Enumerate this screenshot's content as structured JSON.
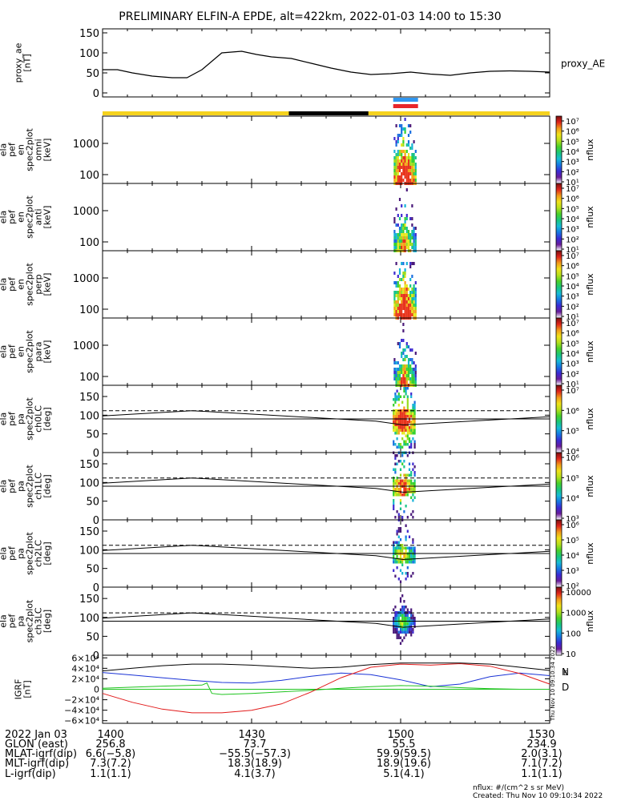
{
  "title": "PRELIMINARY ELFIN-A EPDE, alt=422km, 2022-01-03 14:00 to 15:30",
  "colors": {
    "state_yellow": "#f5d21e",
    "state_black": "#000000",
    "bar_blue": "#2f96f0",
    "bar_red": "#e8262a",
    "grf_n": "#1a33d6",
    "grf_e": "#1fc41f",
    "grf_d": "#e21b1b",
    "grf_total": "#000000"
  },
  "chart_data": [
    {
      "type": "line",
      "panel": "proxy_ae",
      "ylabel": [
        "proxy_ae",
        "[nT]"
      ],
      "right_label": "proxy_AE",
      "ylim": [
        -10,
        160
      ],
      "yticks": [
        "150",
        "100",
        "50",
        "0"
      ],
      "x": [
        0,
        3,
        6,
        10,
        14,
        17,
        20,
        24,
        28,
        31,
        34,
        38,
        42,
        46,
        50,
        54,
        58,
        62,
        66,
        70,
        74,
        78,
        82,
        86,
        90
      ],
      "values": [
        58,
        58,
        50,
        42,
        38,
        38,
        58,
        100,
        104,
        96,
        90,
        86,
        74,
        62,
        52,
        46,
        48,
        52,
        47,
        44,
        50,
        54,
        55,
        54,
        52
      ]
    },
    {
      "type": "heatmap",
      "panel": "spectrum-omni",
      "ylabel": [
        "ela",
        "pef",
        "en",
        "spec2plot",
        "omni",
        "[keV]"
      ],
      "yscale": "log",
      "yticks": [
        "1000",
        "100"
      ],
      "colorbar_ticks": [
        "10⁷",
        "10⁶",
        "10⁵",
        "10⁴",
        "10³",
        "10²",
        "10¹"
      ],
      "colorbar_label": "nflux",
      "activity_window": [
        60,
        62
      ]
    },
    {
      "type": "heatmap",
      "panel": "spectrum-anti",
      "ylabel": [
        "ela",
        "pef",
        "en",
        "spec2plot",
        "anti",
        "[keV]"
      ],
      "yscale": "log",
      "yticks": [
        "1000",
        "100"
      ],
      "colorbar_ticks": [
        "10⁷",
        "10⁶",
        "10⁵",
        "10⁴",
        "10³",
        "10²",
        "10¹"
      ],
      "colorbar_label": "nflux",
      "activity_window": [
        60,
        62
      ]
    },
    {
      "type": "heatmap",
      "panel": "spectrum-perp",
      "ylabel": [
        "ela",
        "pef",
        "en",
        "spec2plot",
        "perp",
        "[keV]"
      ],
      "yscale": "log",
      "yticks": [
        "1000",
        "100"
      ],
      "colorbar_ticks": [
        "10⁷",
        "10⁶",
        "10⁵",
        "10⁴",
        "10³",
        "10²",
        "10¹"
      ],
      "colorbar_label": "nflux",
      "activity_window": [
        60,
        62
      ]
    },
    {
      "type": "heatmap",
      "panel": "spectrum-para",
      "ylabel": [
        "ela",
        "pef",
        "en",
        "spec2plot",
        "para",
        "[keV]"
      ],
      "yscale": "log",
      "yticks": [
        "1000",
        "100"
      ],
      "colorbar_ticks": [
        "10⁷",
        "10⁶",
        "10⁵",
        "10⁴",
        "10³",
        "10²",
        "10¹"
      ],
      "colorbar_label": "nflux",
      "activity_window": [
        60,
        62
      ]
    },
    {
      "type": "heatmap",
      "panel": "pitch-ch0LC",
      "ylabel": [
        "ela",
        "pef",
        "pa",
        "spec2plot",
        "ch0LC",
        "[deg]"
      ],
      "ylim": [
        0,
        180
      ],
      "yticks": [
        "150",
        "100",
        "50",
        "0"
      ],
      "colorbar_ticks": [
        "10⁷",
        "10⁶",
        "10⁵",
        "10⁴"
      ],
      "colorbar_label": "nflux",
      "dashed_level": 112,
      "activity_window": [
        60,
        62
      ]
    },
    {
      "type": "heatmap",
      "panel": "pitch-ch1LC",
      "ylabel": [
        "ela",
        "pef",
        "pa",
        "spec2plot",
        "ch1LC",
        "[deg]"
      ],
      "ylim": [
        0,
        180
      ],
      "yticks": [
        "150",
        "100",
        "50",
        "0"
      ],
      "colorbar_ticks": [
        "10⁶",
        "10⁵",
        "10⁴",
        "10³"
      ],
      "colorbar_label": "nflux",
      "dashed_level": 112,
      "activity_window": [
        60,
        62
      ]
    },
    {
      "type": "heatmap",
      "panel": "pitch-ch2LC",
      "ylabel": [
        "ela",
        "pef",
        "pa",
        "spec2plot",
        "ch2LC",
        "[deg]"
      ],
      "ylim": [
        0,
        180
      ],
      "yticks": [
        "150",
        "100",
        "50",
        "0"
      ],
      "colorbar_ticks": [
        "10⁶",
        "10⁵",
        "10⁴",
        "10³",
        "10²"
      ],
      "colorbar_label": "nflux",
      "dashed_level": 112,
      "activity_window": [
        60,
        62
      ]
    },
    {
      "type": "heatmap",
      "panel": "pitch-ch3LC",
      "ylabel": [
        "ela",
        "pef",
        "pa",
        "spec2plot",
        "ch3LC",
        "[deg]"
      ],
      "ylim": [
        0,
        180
      ],
      "yticks": [
        "150",
        "100",
        "50",
        "0"
      ],
      "colorbar_ticks": [
        "10000",
        "1000",
        "100",
        "10"
      ],
      "colorbar_label": "nflux",
      "dashed_level": 112,
      "activity_window": [
        60,
        62
      ]
    },
    {
      "type": "line",
      "panel": "igrf",
      "ylabel": [
        "IGRF",
        "[nT]"
      ],
      "ylim": [
        -65000,
        65000
      ],
      "yticks": [
        "6×10⁴",
        "4×10⁴",
        "2×10⁴",
        "0",
        "−2×10⁴",
        "−4×10⁴",
        "−6×10⁴"
      ],
      "side_labels": [
        "N",
        "E",
        "D"
      ],
      "vertical_stamp": "Thu Nov 10 09:10:34 2022",
      "series": [
        {
          "name": "N",
          "x": [
            0,
            6,
            12,
            18,
            24,
            30,
            36,
            42,
            48,
            54,
            60,
            66,
            72,
            78,
            84,
            90
          ],
          "values": [
            32000,
            27000,
            22000,
            17000,
            13000,
            12000,
            17000,
            25000,
            31000,
            28000,
            18000,
            5000,
            10000,
            24000,
            31000,
            26000
          ]
        },
        {
          "name": "E",
          "x": [
            0,
            6,
            12,
            20,
            21,
            22,
            24,
            30,
            36,
            42,
            48,
            54,
            60,
            66,
            72,
            78,
            84,
            90
          ],
          "values": [
            2000,
            4000,
            6000,
            8000,
            12000,
            -8000,
            -10000,
            -8000,
            -5000,
            -2000,
            2000,
            5000,
            7000,
            6000,
            3000,
            1000,
            0,
            0
          ]
        },
        {
          "name": "D",
          "x": [
            0,
            6,
            12,
            18,
            24,
            30,
            36,
            42,
            48,
            54,
            60,
            66,
            72,
            78,
            84,
            90
          ],
          "values": [
            -8000,
            -25000,
            -38000,
            -45000,
            -45000,
            -40000,
            -28000,
            -5000,
            22000,
            42000,
            48000,
            46000,
            49000,
            44000,
            30000,
            10000
          ]
        },
        {
          "name": "Total",
          "x": [
            0,
            6,
            12,
            18,
            24,
            30,
            36,
            42,
            48,
            54,
            60,
            66,
            72,
            78,
            84,
            90
          ],
          "values": [
            35000,
            40000,
            45000,
            48000,
            48000,
            46000,
            43000,
            40000,
            42000,
            47000,
            50000,
            50000,
            50000,
            48000,
            42000,
            36000
          ]
        }
      ]
    }
  ],
  "x_axis": {
    "row_headers": [
      "2022 Jan 03",
      "GLON (east)",
      "MLAT-igrf(dip)",
      "MLT-igrf(dip)",
      "L-igrf(dip)"
    ],
    "columns": [
      {
        "pos": 0,
        "values": [
          "1400",
          "256.8",
          "6.6(−5.8)",
          "7.3(7.2)",
          "1.1(1.1)"
        ]
      },
      {
        "pos": 30,
        "values": [
          "1430",
          "73.7",
          "−55.5(−57.3)",
          "18.3(18.9)",
          "4.1(3.7)"
        ]
      },
      {
        "pos": 60,
        "values": [
          "1500",
          "55.5",
          "59.9(59.5)",
          "18.9(19.6)",
          "5.1(4.1)"
        ]
      },
      {
        "pos": 90,
        "values": [
          "1530",
          "234.9",
          "2.0(3.1)",
          "7.1(7.2)",
          "1.1(1.1)"
        ]
      }
    ]
  },
  "footer": {
    "units_note": "nflux: #/(cm^2 s sr MeV)",
    "created": "Created: Thu Nov 10 09:10:34 2022"
  }
}
